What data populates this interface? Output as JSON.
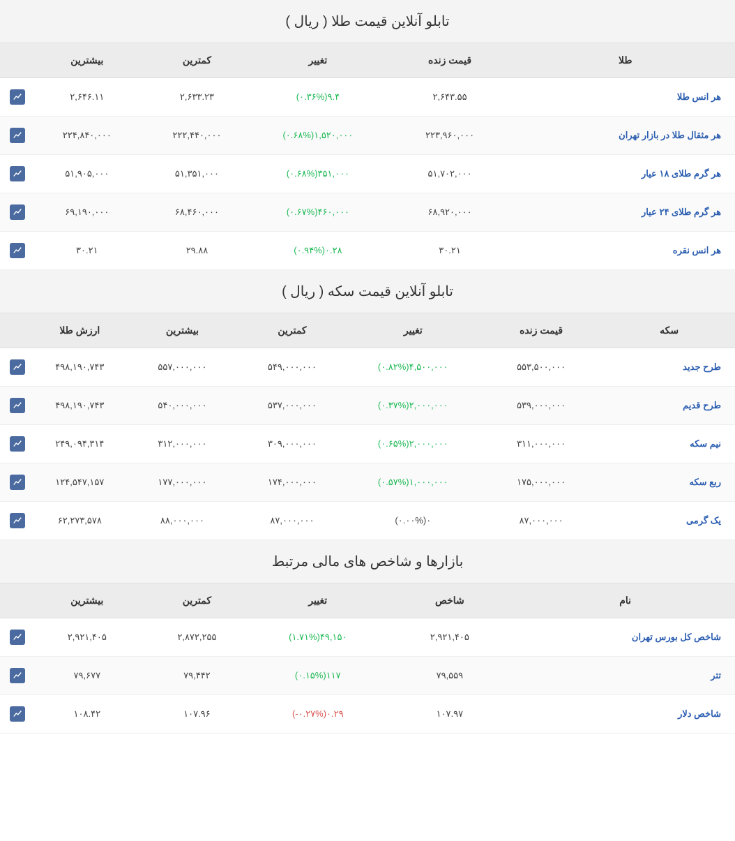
{
  "colors": {
    "link": "#2a5db0",
    "up": "#1db954",
    "down": "#d9534f",
    "neutral": "#444444",
    "header_bg": "#ececec",
    "title_bg": "#f4f4f4",
    "row_alt_bg": "#fafafa",
    "icon_bg": "#4a6aa0",
    "border": "#e0e0e0"
  },
  "typography": {
    "title_fontsize": 20,
    "header_fontsize": 14,
    "cell_fontsize": 13,
    "font_family": "Tahoma"
  },
  "sections": [
    {
      "title": "تابلو آنلاین قیمت طلا ( ریال )",
      "columns": [
        "طلا",
        "قیمت زنده",
        "تغییر",
        "کمترین",
        "بیشترین"
      ],
      "col_widths": [
        "30%",
        "18%",
        "18%",
        "15%",
        "15%"
      ],
      "rows": [
        {
          "name": "هر انس طلا",
          "live": "۲,۶۴۳.۵۵",
          "change_val": "۹.۴",
          "change_pct": "(۰.۳۶%)",
          "dir": "up",
          "low": "۲,۶۳۳.۲۳",
          "high": "۲,۶۴۶.۱۱"
        },
        {
          "name": "هر مثقال طلا در بازار تهران",
          "live": "۲۲۳,۹۶۰,۰۰۰",
          "change_val": "۱,۵۲۰,۰۰۰",
          "change_pct": "(۰.۶۸%)",
          "dir": "up",
          "low": "۲۲۲,۴۴۰,۰۰۰",
          "high": "۲۲۴,۸۴۰,۰۰۰"
        },
        {
          "name": "هر گرم طلای ۱۸ عیار",
          "live": "۵۱,۷۰۲,۰۰۰",
          "change_val": "۳۵۱,۰۰۰",
          "change_pct": "(۰.۶۸%)",
          "dir": "up",
          "low": "۵۱,۳۵۱,۰۰۰",
          "high": "۵۱,۹۰۵,۰۰۰"
        },
        {
          "name": "هر گرم طلای ۲۴ عیار",
          "live": "۶۸,۹۲۰,۰۰۰",
          "change_val": "۴۶۰,۰۰۰",
          "change_pct": "(۰.۶۷%)",
          "dir": "up",
          "low": "۶۸,۴۶۰,۰۰۰",
          "high": "۶۹,۱۹۰,۰۰۰"
        },
        {
          "name": "هر انس نقره",
          "live": "۳۰.۲۱",
          "change_val": "۰.۲۸",
          "change_pct": "(۰.۹۴%)",
          "dir": "up",
          "low": "۲۹.۸۸",
          "high": "۳۰.۲۱"
        }
      ]
    },
    {
      "title": "تابلو آنلاین قیمت سکه ( ریال )",
      "columns": [
        "سکه",
        "قیمت زنده",
        "تغییر",
        "کمترین",
        "بیشترین",
        "ارزش طلا"
      ],
      "col_widths": [
        "18%",
        "17%",
        "18%",
        "15%",
        "15%",
        "13%"
      ],
      "rows": [
        {
          "name": "طرح جدید",
          "live": "۵۵۳,۵۰۰,۰۰۰",
          "change_val": "۴,۵۰۰,۰۰۰",
          "change_pct": "(۰.۸۲%)",
          "dir": "up",
          "low": "۵۴۹,۰۰۰,۰۰۰",
          "high": "۵۵۷,۰۰۰,۰۰۰",
          "extra": "۴۹۸,۱۹۰,۷۴۳"
        },
        {
          "name": "طرح قدیم",
          "live": "۵۳۹,۰۰۰,۰۰۰",
          "change_val": "۲,۰۰۰,۰۰۰",
          "change_pct": "(۰.۳۷%)",
          "dir": "up",
          "low": "۵۳۷,۰۰۰,۰۰۰",
          "high": "۵۴۰,۰۰۰,۰۰۰",
          "extra": "۴۹۸,۱۹۰,۷۴۳"
        },
        {
          "name": "نیم سکه",
          "live": "۳۱۱,۰۰۰,۰۰۰",
          "change_val": "۲,۰۰۰,۰۰۰",
          "change_pct": "(۰.۶۵%)",
          "dir": "up",
          "low": "۳۰۹,۰۰۰,۰۰۰",
          "high": "۳۱۲,۰۰۰,۰۰۰",
          "extra": "۲۴۹,۰۹۴,۳۱۴"
        },
        {
          "name": "ربع سکه",
          "live": "۱۷۵,۰۰۰,۰۰۰",
          "change_val": "۱,۰۰۰,۰۰۰",
          "change_pct": "(۰.۵۷%)",
          "dir": "up",
          "low": "۱۷۴,۰۰۰,۰۰۰",
          "high": "۱۷۷,۰۰۰,۰۰۰",
          "extra": "۱۲۴,۵۴۷,۱۵۷"
        },
        {
          "name": "یک گرمی",
          "live": "۸۷,۰۰۰,۰۰۰",
          "change_val": "۰",
          "change_pct": "(۰.۰۰%)",
          "dir": "neutral",
          "low": "۸۷,۰۰۰,۰۰۰",
          "high": "۸۸,۰۰۰,۰۰۰",
          "extra": "۶۲,۲۷۳,۵۷۸"
        }
      ]
    },
    {
      "title": "بازارها و شاخص های مالی مرتبط",
      "columns": [
        "نام",
        "شاخص",
        "تغییر",
        "کمترین",
        "بیشترین"
      ],
      "col_widths": [
        "30%",
        "18%",
        "18%",
        "15%",
        "15%"
      ],
      "rows": [
        {
          "name": "شاخص کل بورس تهران",
          "live": "۲,۹۲۱,۴۰۵",
          "change_val": "۴۹,۱۵۰",
          "change_pct": "(۱.۷۱%)",
          "dir": "up",
          "low": "۲,۸۷۲,۲۵۵",
          "high": "۲,۹۲۱,۴۰۵"
        },
        {
          "name": "تتر",
          "live": "۷۹,۵۵۹",
          "change_val": "۱۱۷",
          "change_pct": "(۰.۱۵%)",
          "dir": "up",
          "low": "۷۹,۴۴۲",
          "high": "۷۹,۶۷۷"
        },
        {
          "name": "شاخص دلار",
          "live": "۱۰۷.۹۷",
          "change_val": "۰.۲۹",
          "change_pct": "(-۰.۲۷%)",
          "dir": "down",
          "low": "۱۰۷.۹۶",
          "high": "۱۰۸.۴۲"
        }
      ]
    }
  ]
}
